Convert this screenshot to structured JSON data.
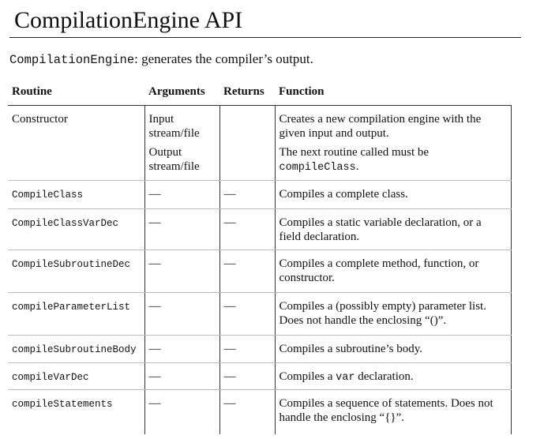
{
  "title": "CompilationEngine API",
  "subtitle": {
    "class_name": "CompilationEngine",
    "description": ": generates the compiler’s output."
  },
  "table": {
    "headers": {
      "routine": "Routine",
      "arguments": "Arguments",
      "returns": "Returns",
      "function": "Function"
    },
    "constructor": {
      "routine": "Constructor",
      "args_1": "Input stream/file",
      "args_2": "Output stream/file",
      "returns": "",
      "function_1": "Creates a new compilation engine with the given input and output.",
      "function_2_prefix": "The next routine called must be ",
      "function_2_code": "compileClass",
      "function_2_suffix": "."
    },
    "rows": [
      {
        "routine": "CompileClass",
        "arguments": "—",
        "returns": "—",
        "function": "Compiles a complete class."
      },
      {
        "routine": "CompileClassVarDec",
        "arguments": "—",
        "returns": "—",
        "function": "Compiles a static variable declaration, or a field declaration."
      },
      {
        "routine": "CompileSubroutineDec",
        "arguments": "—",
        "returns": "—",
        "function": "Compiles a complete method, function, or constructor."
      },
      {
        "routine": "compileParameterList",
        "arguments": "—",
        "returns": "—",
        "function": "Compiles a (possibly empty) parameter list. Does not handle the enclosing “()”."
      },
      {
        "routine": "compileSubroutineBody",
        "arguments": "—",
        "returns": "—",
        "function": "Compiles a subroutine’s body."
      },
      {
        "routine": "compileVarDec",
        "arguments": "—",
        "returns": "—",
        "function_prefix": "Compiles a ",
        "function_code": "var",
        "function_suffix": " declaration."
      },
      {
        "routine": "compileStatements",
        "arguments": "—",
        "returns": "—",
        "function": "Compiles a sequence of statements. Does not handle the enclosing “{}”."
      }
    ]
  }
}
